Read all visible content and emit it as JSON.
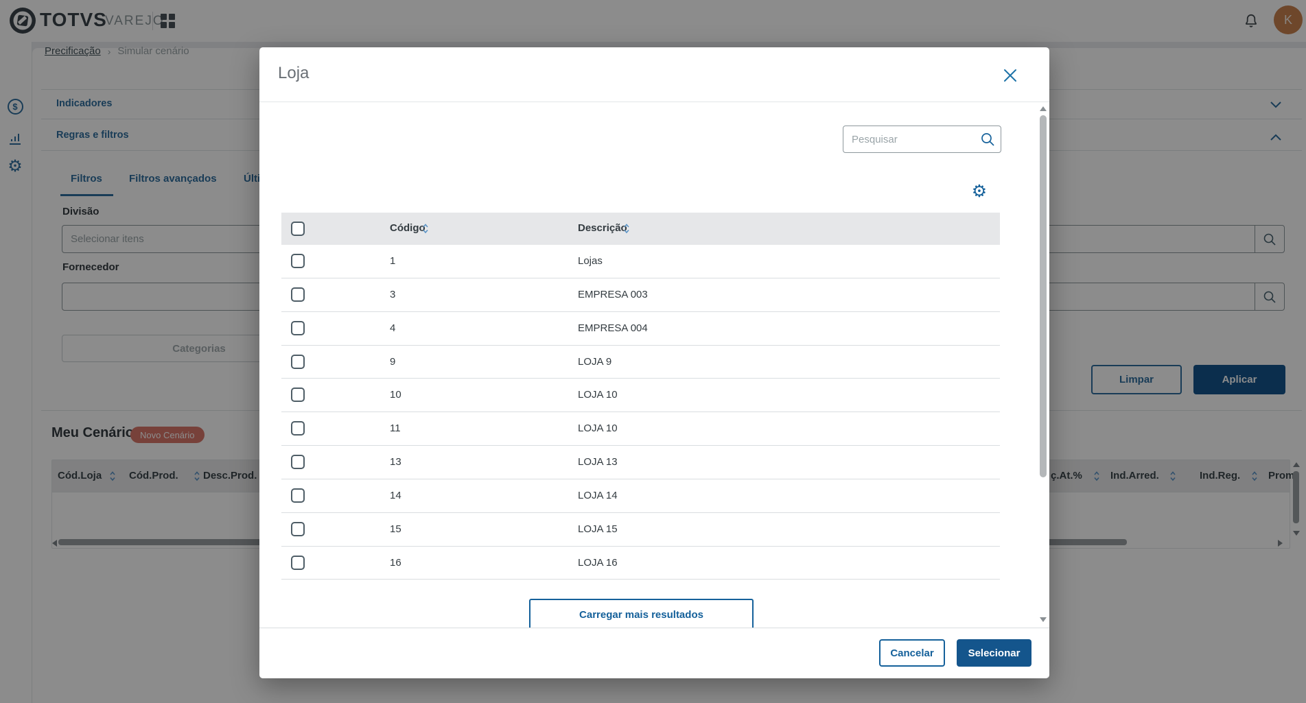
{
  "topbar": {
    "brand": "TOTVS",
    "product": "VAREJO",
    "avatar_initial": "K"
  },
  "breadcrumb": {
    "parent": "Precificação",
    "separator": "›",
    "current": "Simular cenário"
  },
  "page": {
    "section_indicadores": "Indicadores",
    "section_regras": "Regras e filtros",
    "tabs": [
      {
        "label": "Filtros",
        "active": true
      },
      {
        "label": "Filtros avançados",
        "active": false
      },
      {
        "label": "Últi",
        "active": false
      }
    ],
    "filters": {
      "divisao_label": "Divisão",
      "divisao_placeholder": "Selecionar itens",
      "fornecedor_label": "Fornecedor",
      "categorias_button": "Categorias",
      "limpar_button": "Limpar",
      "aplicar_button": "Aplicar"
    },
    "meu_cenario": {
      "title": "Meu Cenário",
      "badge": "Novo Cenário",
      "columns": [
        "Cód.Loja",
        "Cód.Prod.",
        "Desc.Prod.",
        "ç.At.%",
        "Ind.Arred.",
        "Ind.Reg.",
        "Prom"
      ]
    }
  },
  "modal": {
    "title": "Loja",
    "search_placeholder": "Pesquisar",
    "table": {
      "columns": [
        "Código",
        "Descrição"
      ],
      "rows": [
        {
          "codigo": "1",
          "descricao": "Lojas"
        },
        {
          "codigo": "3",
          "descricao": "EMPRESA 003"
        },
        {
          "codigo": "4",
          "descricao": "EMPRESA 004"
        },
        {
          "codigo": "9",
          "descricao": "LOJA 9"
        },
        {
          "codigo": "10",
          "descricao": "LOJA 10"
        },
        {
          "codigo": "11",
          "descricao": "LOJA 10"
        },
        {
          "codigo": "13",
          "descricao": "LOJA 13"
        },
        {
          "codigo": "14",
          "descricao": "LOJA 14"
        },
        {
          "codigo": "15",
          "descricao": "LOJA 15"
        },
        {
          "codigo": "16",
          "descricao": "LOJA 16"
        }
      ]
    },
    "load_more_button": "Carregar mais resultados",
    "cancel_button": "Cancelar",
    "select_button": "Selecionar"
  },
  "colors": {
    "action_blue": "#14609a",
    "primary_button": "#14558c",
    "link_blue": "#2e6e9e",
    "badge_red": "#d9776b",
    "avatar_orange": "#c9824f",
    "header_gray": "#e6e7e9"
  }
}
